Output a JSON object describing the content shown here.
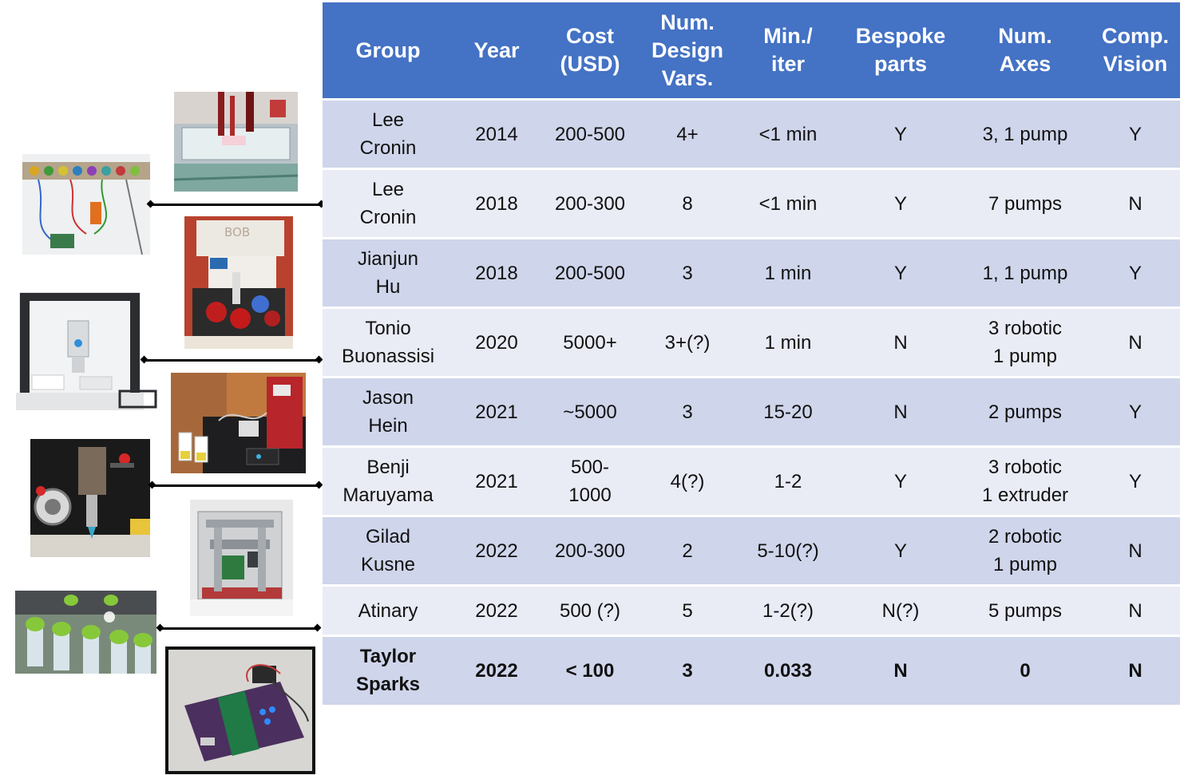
{
  "table": {
    "headers": [
      {
        "key": "group",
        "lines": [
          "Group"
        ]
      },
      {
        "key": "year",
        "lines": [
          "Year"
        ]
      },
      {
        "key": "cost",
        "lines": [
          "Cost",
          "(USD)"
        ]
      },
      {
        "key": "num_design_vars",
        "lines": [
          "Num.",
          "Design",
          "Vars."
        ]
      },
      {
        "key": "min_iter",
        "lines": [
          "Min./",
          "iter"
        ]
      },
      {
        "key": "bespoke_parts",
        "lines": [
          "Bespoke",
          "parts"
        ]
      },
      {
        "key": "num_axes",
        "lines": [
          "Num.",
          "Axes"
        ]
      },
      {
        "key": "comp_vision",
        "lines": [
          "Comp.",
          "Vision"
        ]
      }
    ],
    "rows": [
      {
        "group": [
          "Lee",
          "Cronin"
        ],
        "year": "2014",
        "cost": [
          "200-500"
        ],
        "vars": "4+",
        "min_iter": "<1 min",
        "bespoke": "Y",
        "axes": [
          "3, 1 pump"
        ],
        "vision": "Y"
      },
      {
        "group": [
          "Lee",
          "Cronin"
        ],
        "year": "2018",
        "cost": [
          "200-300"
        ],
        "vars": "8",
        "min_iter": "<1 min",
        "bespoke": "Y",
        "axes": [
          "7 pumps"
        ],
        "vision": "N"
      },
      {
        "group": [
          "Jianjun",
          "Hu"
        ],
        "year": "2018",
        "cost": [
          "200-500"
        ],
        "vars": "3",
        "min_iter": "1 min",
        "bespoke": "Y",
        "axes": [
          "1, 1 pump"
        ],
        "vision": "Y"
      },
      {
        "group": [
          "Tonio",
          "Buonassisi"
        ],
        "year": "2020",
        "cost": [
          "5000+"
        ],
        "vars": "3+(?)",
        "min_iter": "1 min",
        "bespoke": "N",
        "axes": [
          "3 robotic",
          "1 pump"
        ],
        "vision": "N"
      },
      {
        "group": [
          "Jason",
          "Hein"
        ],
        "year": "2021",
        "cost": [
          "~5000"
        ],
        "vars": "3",
        "min_iter": "15-20",
        "bespoke": "N",
        "axes": [
          "2 pumps"
        ],
        "vision": "Y"
      },
      {
        "group": [
          "Benji",
          "Maruyama"
        ],
        "year": "2021",
        "cost": [
          "500-",
          "1000"
        ],
        "vars": "4(?)",
        "min_iter": "1-2",
        "bespoke": "Y",
        "axes": [
          "3 robotic",
          "1 extruder"
        ],
        "vision": "Y"
      },
      {
        "group": [
          "Gilad",
          "Kusne"
        ],
        "year": "2022",
        "cost": [
          "200-300"
        ],
        "vars": "2",
        "min_iter": "5-10(?)",
        "bespoke": "Y",
        "axes": [
          "2 robotic",
          "1 pump"
        ],
        "vision": "N"
      },
      {
        "group": [
          "Atinary"
        ],
        "year": "2022",
        "cost": [
          "500 (?)"
        ],
        "vars": "5",
        "min_iter": "1-2(?)",
        "bespoke": "N(?)",
        "axes": [
          "5 pumps"
        ],
        "vision": "N"
      },
      {
        "group": [
          "Taylor",
          "Sparks"
        ],
        "year": "2022",
        "cost": [
          "< 100"
        ],
        "vars": "3",
        "min_iter": "0.033",
        "bespoke": "N",
        "axes": [
          "0"
        ],
        "vision": "N",
        "bold": true
      }
    ]
  },
  "photos": {
    "bob_label": "BOB",
    "colors": {
      "header": "#4472C4",
      "row_odd": "#CFD5EA",
      "row_even": "#E9EBF5"
    }
  }
}
